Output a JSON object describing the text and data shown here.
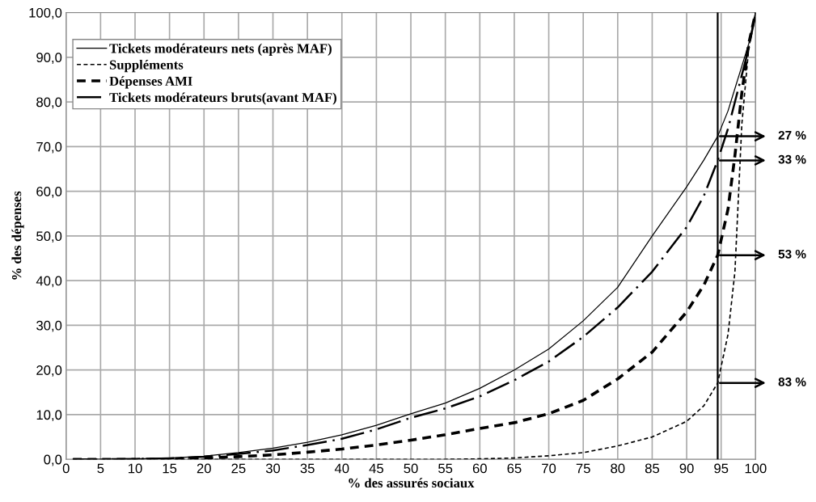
{
  "chart_data": {
    "type": "line",
    "xlabel": "% des assurés sociaux",
    "ylabel": "% des dépenses",
    "xlim": [
      0,
      100
    ],
    "xticks": [
      0,
      5,
      10,
      15,
      20,
      25,
      30,
      35,
      40,
      45,
      50,
      55,
      60,
      65,
      70,
      75,
      80,
      85,
      90,
      95,
      100
    ],
    "ylim": [
      0,
      100
    ],
    "yticks": [
      {
        "value": 0,
        "label": "0,0"
      },
      {
        "value": 10,
        "label": "10,0"
      },
      {
        "value": 20,
        "label": "20,0"
      },
      {
        "value": 30,
        "label": "30,0"
      },
      {
        "value": 40,
        "label": "40,0"
      },
      {
        "value": 50,
        "label": "50,0"
      },
      {
        "value": 60,
        "label": "60,0"
      },
      {
        "value": 70,
        "label": "70,0"
      },
      {
        "value": 80,
        "label": "80,0"
      },
      {
        "value": 90,
        "label": "90,0"
      },
      {
        "value": 100,
        "label": "100,0"
      }
    ],
    "grid": true,
    "legend": "top left",
    "marker": "none",
    "x": [
      1,
      5,
      10,
      15,
      20,
      25,
      30,
      35,
      40,
      45,
      50,
      55,
      60,
      65,
      70,
      75,
      80,
      85,
      90,
      92.5,
      94.5,
      96,
      97,
      98,
      99,
      100
    ],
    "series": [
      {
        "name": "Tickets modérateurs nets (après MAF)",
        "color": "#000000",
        "line_style": "solid",
        "values": [
          0,
          0,
          0.1,
          0.3,
          0.7,
          1.5,
          2.5,
          3.8,
          5.5,
          7.6,
          10.2,
          12.6,
          15.9,
          20,
          24.7,
          31,
          38.5,
          50,
          61,
          67,
          72.3,
          78,
          83,
          88,
          93,
          100
        ]
      },
      {
        "name": "Suppléments",
        "color": "#000000",
        "line_style": "dashed",
        "values": [
          0,
          0,
          0,
          0,
          0,
          0,
          0,
          0,
          0,
          0,
          0,
          0,
          0.1,
          0.3,
          0.8,
          1.5,
          3,
          5,
          8.5,
          12,
          17.1,
          28,
          42,
          75,
          92,
          100
        ]
      },
      {
        "name": "Dépenses AMI",
        "color": "#000000",
        "line_style": "dashed",
        "values": [
          0,
          0,
          0,
          0.1,
          0.3,
          0.6,
          1,
          1.6,
          2.3,
          3.2,
          4.3,
          5.5,
          6.9,
          8.2,
          10.2,
          13.2,
          18,
          24,
          33,
          39,
          45.7,
          56,
          68,
          82,
          93,
          100
        ]
      },
      {
        "name": "Tickets modérateurs bruts(avant MAF)",
        "color": "#000000",
        "line_style": "dashdot",
        "values": [
          0,
          0,
          0.1,
          0.2,
          0.6,
          1.2,
          2,
          3.2,
          4.6,
          6.7,
          9.3,
          11.4,
          14.1,
          17.7,
          21.9,
          27.4,
          34,
          42,
          52,
          59,
          66.9,
          74,
          80,
          86,
          92,
          100
        ]
      }
    ],
    "ref_lines": [
      {
        "axis": "x",
        "value": 94.5,
        "color": "#000000",
        "line_style": "solid"
      }
    ],
    "annotations": [
      "27 %",
      "33 %",
      "53 %",
      "83 %"
    ]
  }
}
